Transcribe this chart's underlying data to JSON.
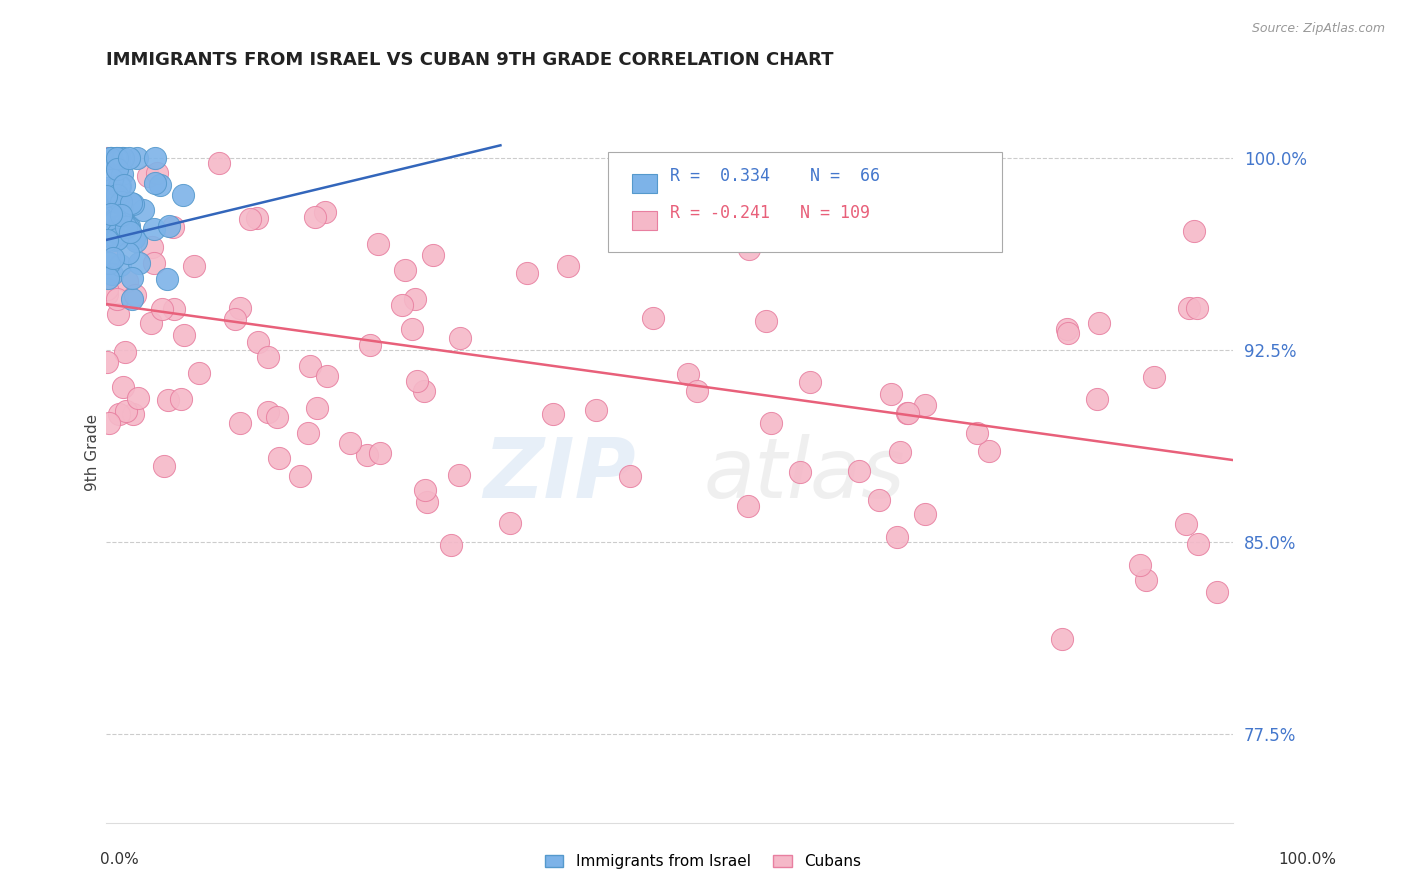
{
  "title": "IMMIGRANTS FROM ISRAEL VS CUBAN 9TH GRADE CORRELATION CHART",
  "source_text": "Source: ZipAtlas.com",
  "ylabel": "9th Grade",
  "xmin": 0.0,
  "xmax": 1.0,
  "ymin": 0.74,
  "ymax": 1.03,
  "ytick_vals": [
    0.775,
    0.85,
    0.925,
    1.0
  ],
  "ytick_labels": [
    "77.5%",
    "85.0%",
    "92.5%",
    "100.0%"
  ],
  "grid_color": "#cccccc",
  "background_color": "#ffffff",
  "israel_color": "#7db3e8",
  "israel_edge_color": "#5599cc",
  "cuba_color": "#f5b8c8",
  "cuba_edge_color": "#e87fa0",
  "israel_line_color": "#3366bb",
  "cuba_line_color": "#e8607a",
  "israel_R": 0.334,
  "israel_N": 66,
  "cuba_R": -0.241,
  "cuba_N": 109,
  "legend_label_israel": "Immigrants from Israel",
  "legend_label_cuba": "Cubans",
  "marker_size": 9,
  "right_tick_color": "#4477cc",
  "israel_line_x0": 0.0,
  "israel_line_x1": 0.35,
  "israel_line_y0": 0.968,
  "israel_line_y1": 1.005,
  "cuba_line_x0": 0.0,
  "cuba_line_x1": 1.0,
  "cuba_line_y0": 0.943,
  "cuba_line_y1": 0.882
}
